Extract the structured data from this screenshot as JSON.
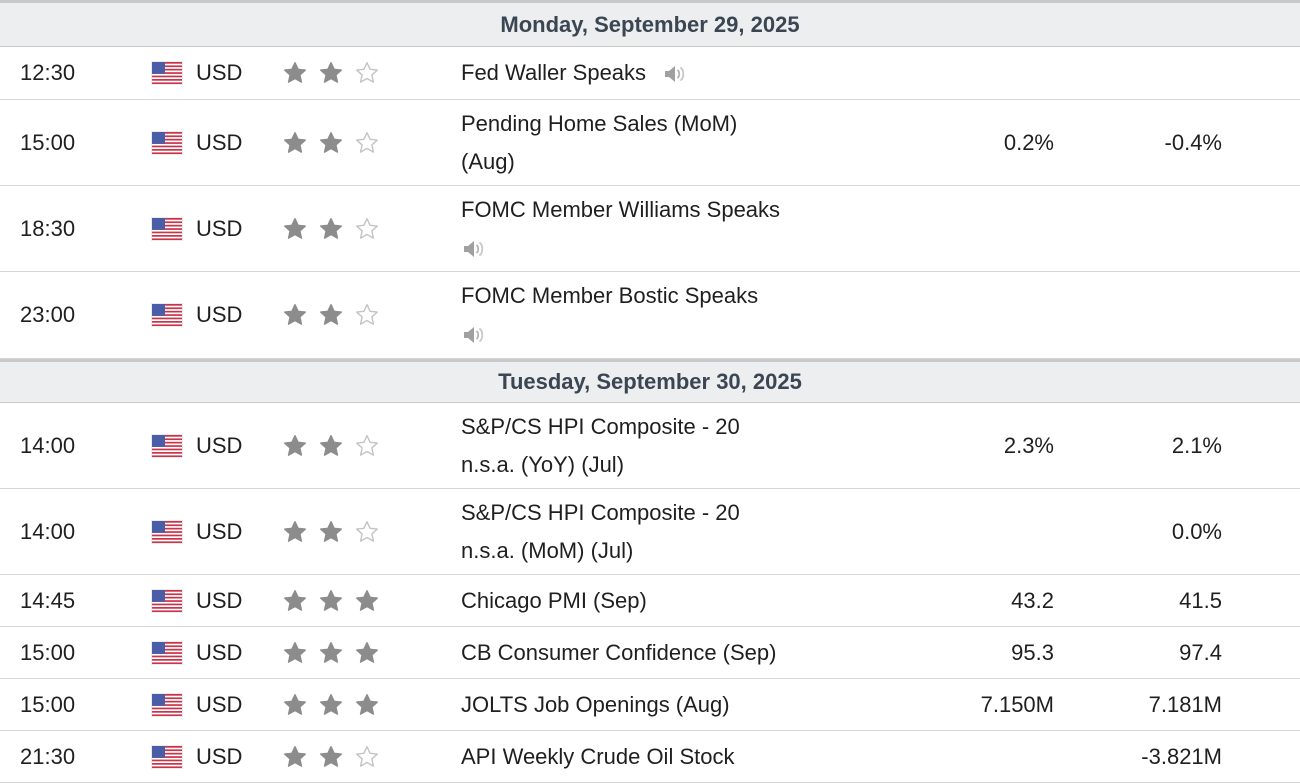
{
  "calendar": {
    "days": [
      {
        "header": "Monday, September 29, 2025",
        "events": [
          {
            "time": "12:30",
            "currency": "USD",
            "importance": 2,
            "event": "Fed Waller Speaks",
            "speech": true,
            "actual": "",
            "previous": ""
          },
          {
            "time": "15:00",
            "currency": "USD",
            "importance": 2,
            "event": "Pending Home Sales (MoM) (Aug)",
            "speech": false,
            "actual": "0.2%",
            "previous": "-0.4%"
          },
          {
            "time": "18:30",
            "currency": "USD",
            "importance": 2,
            "event": "FOMC Member Williams Speaks",
            "speech": true,
            "actual": "",
            "previous": ""
          },
          {
            "time": "23:00",
            "currency": "USD",
            "importance": 2,
            "event": "FOMC Member Bostic Speaks",
            "speech": true,
            "actual": "",
            "previous": ""
          }
        ]
      },
      {
        "header": "Tuesday, September 30, 2025",
        "events": [
          {
            "time": "14:00",
            "currency": "USD",
            "importance": 2,
            "event": "S&P/CS HPI Composite - 20 n.s.a. (YoY) (Jul)",
            "speech": false,
            "actual": "2.3%",
            "previous": "2.1%"
          },
          {
            "time": "14:00",
            "currency": "USD",
            "importance": 2,
            "event": "S&P/CS HPI Composite - 20 n.s.a. (MoM) (Jul)",
            "speech": false,
            "actual": "",
            "previous": "0.0%"
          },
          {
            "time": "14:45",
            "currency": "USD",
            "importance": 3,
            "event": "Chicago PMI (Sep)",
            "speech": false,
            "actual": "43.2",
            "previous": "41.5"
          },
          {
            "time": "15:00",
            "currency": "USD",
            "importance": 3,
            "event": "CB Consumer Confidence (Sep)",
            "speech": false,
            "actual": "95.3",
            "previous": "97.4"
          },
          {
            "time": "15:00",
            "currency": "USD",
            "importance": 3,
            "event": "JOLTS Job Openings (Aug)",
            "speech": false,
            "actual": "7.150M",
            "previous": "7.181M"
          },
          {
            "time": "21:30",
            "currency": "USD",
            "importance": 2,
            "event": "API Weekly Crude Oil Stock",
            "speech": false,
            "actual": "",
            "previous": "-3.821M"
          }
        ]
      }
    ]
  },
  "icons": {
    "flag": "us-flag-icon",
    "star": "star-icon",
    "speaker": "speaker-icon"
  },
  "colors": {
    "header_bg": "#eceef0",
    "header_text": "#3c4652",
    "star_filled": "#8c8c8c",
    "star_empty": "#c4c4c4",
    "speaker": "#a0a0a0"
  }
}
